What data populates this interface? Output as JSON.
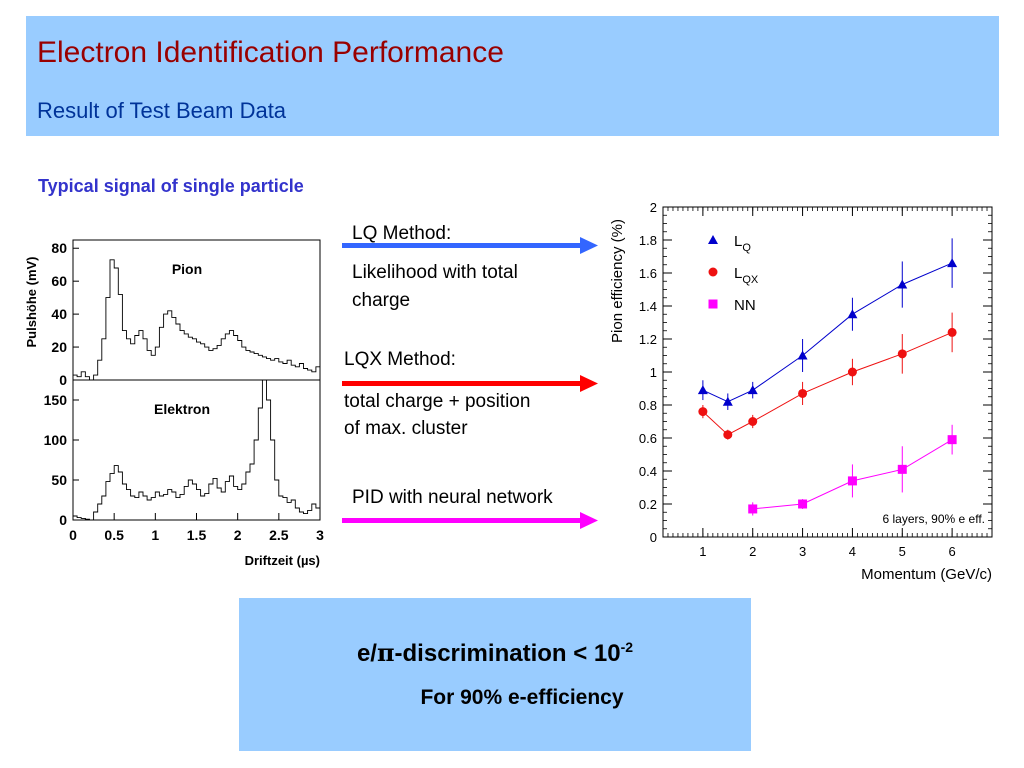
{
  "header": {
    "title": "Electron Identification Performance",
    "subtitle": "Result of Test Beam Data"
  },
  "section_title": "Typical signal of single particle",
  "methods": [
    {
      "name": "LQ Method:",
      "line1": "Likelihood with total",
      "line2": "charge",
      "arrow_color": "#3366ff"
    },
    {
      "name": "LQX Method:",
      "line1": "total charge + position",
      "line2": "of max. cluster",
      "arrow_color": "#ff0000"
    },
    {
      "name": "PID with neural network",
      "arrow_color": "#ff00ff"
    }
  ],
  "result": {
    "prefix": "e/",
    "pi": "π",
    "middle": "-discrimination < 10",
    "exponent": "-2",
    "efficiency": "For 90% e-efficiency"
  },
  "chart_data": [
    {
      "type": "line",
      "title": "Pion",
      "ylabel": "Pulshöhe (mV)",
      "ylim": [
        0,
        85
      ],
      "yticks": [
        "0",
        "20",
        "40",
        "60",
        "80"
      ],
      "x": [
        0,
        0.05,
        0.1,
        0.15,
        0.2,
        0.25,
        0.3,
        0.35,
        0.4,
        0.45,
        0.5,
        0.55,
        0.6,
        0.65,
        0.7,
        0.75,
        0.8,
        0.85,
        0.9,
        0.95,
        1.0,
        1.05,
        1.1,
        1.15,
        1.2,
        1.25,
        1.3,
        1.35,
        1.4,
        1.45,
        1.5,
        1.55,
        1.6,
        1.65,
        1.7,
        1.75,
        1.8,
        1.85,
        1.9,
        1.95,
        2.0,
        2.05,
        2.1,
        2.15,
        2.2,
        2.25,
        2.3,
        2.35,
        2.4,
        2.45,
        2.5,
        2.55,
        2.6,
        2.65,
        2.7,
        2.75,
        2.8,
        2.85,
        2.9,
        2.95,
        3.0
      ],
      "values": [
        3,
        2,
        5,
        2,
        0,
        3,
        12,
        25,
        50,
        73,
        68,
        52,
        30,
        25,
        22,
        27,
        30,
        25,
        18,
        15,
        20,
        32,
        40,
        42,
        38,
        34,
        30,
        28,
        26,
        25,
        23,
        22,
        20,
        18,
        19,
        21,
        25,
        28,
        30,
        27,
        24,
        20,
        18,
        17,
        16,
        15,
        14,
        13,
        12,
        13,
        11,
        10,
        12,
        9,
        8,
        10,
        7,
        6,
        5,
        8,
        7
      ]
    },
    {
      "type": "line",
      "title": "Elektron",
      "xlabel": "Driftzeit (µs)",
      "ylim": [
        0,
        175
      ],
      "yticks": [
        "0",
        "50",
        "100",
        "150"
      ],
      "xticks": [
        "0",
        "0.5",
        "1",
        "1.5",
        "2",
        "2.5",
        "3"
      ],
      "x": [
        0,
        0.05,
        0.1,
        0.15,
        0.2,
        0.25,
        0.3,
        0.35,
        0.4,
        0.45,
        0.5,
        0.55,
        0.6,
        0.65,
        0.7,
        0.75,
        0.8,
        0.85,
        0.9,
        0.95,
        1.0,
        1.05,
        1.1,
        1.15,
        1.2,
        1.25,
        1.3,
        1.35,
        1.4,
        1.45,
        1.5,
        1.55,
        1.6,
        1.65,
        1.7,
        1.75,
        1.8,
        1.85,
        1.9,
        1.95,
        2.0,
        2.05,
        2.1,
        2.15,
        2.2,
        2.25,
        2.3,
        2.35,
        2.4,
        2.45,
        2.5,
        2.55,
        2.6,
        2.65,
        2.7,
        2.75,
        2.8,
        2.85,
        2.9,
        2.95,
        3.0
      ],
      "values": [
        5,
        3,
        2,
        1,
        0,
        10,
        20,
        30,
        48,
        58,
        68,
        60,
        45,
        38,
        30,
        28,
        35,
        30,
        25,
        28,
        35,
        30,
        32,
        38,
        35,
        28,
        32,
        42,
        50,
        45,
        38,
        30,
        33,
        45,
        52,
        40,
        35,
        48,
        55,
        42,
        38,
        45,
        60,
        70,
        100,
        140,
        175,
        150,
        100,
        50,
        30,
        28,
        22,
        25,
        15,
        10,
        8,
        12,
        20,
        15,
        10
      ]
    },
    {
      "type": "scatter",
      "ylabel": "Pion efficiency (%)",
      "xlabel": "Momentum (GeV/c)",
      "xlim": [
        0.2,
        6.8
      ],
      "ylim": [
        0,
        2
      ],
      "xticks": [
        "1",
        "2",
        "3",
        "4",
        "5",
        "6"
      ],
      "yticks": [
        "0",
        "0.2",
        "0.4",
        "0.6",
        "0.8",
        "1",
        "1.2",
        "1.4",
        "1.6",
        "1.8",
        "2"
      ],
      "annotation": "6 layers, 90% e eff.",
      "series": [
        {
          "name": "L",
          "sub": "Q",
          "marker": "triangle",
          "color": "#0000cc",
          "x": [
            1,
            1.5,
            2,
            3,
            4,
            5,
            6
          ],
          "values": [
            0.89,
            0.82,
            0.89,
            1.1,
            1.35,
            1.53,
            1.66
          ],
          "err": [
            0.06,
            0.05,
            0.05,
            0.1,
            0.1,
            0.14,
            0.15
          ]
        },
        {
          "name": "L",
          "sub": "QX",
          "marker": "circle",
          "color": "#ee1111",
          "x": [
            1,
            1.5,
            2,
            3,
            4,
            5,
            6
          ],
          "values": [
            0.76,
            0.62,
            0.7,
            0.87,
            1.0,
            1.11,
            1.24
          ],
          "err": [
            0.04,
            0.03,
            0.04,
            0.07,
            0.08,
            0.12,
            0.12
          ]
        },
        {
          "name": "NN",
          "sub": "",
          "marker": "square",
          "color": "#ff00ff",
          "x": [
            2,
            3,
            4,
            5,
            6
          ],
          "values": [
            0.17,
            0.2,
            0.34,
            0.41,
            0.59
          ],
          "err": [
            0.04,
            0.03,
            0.1,
            0.14,
            0.09
          ]
        }
      ]
    }
  ]
}
